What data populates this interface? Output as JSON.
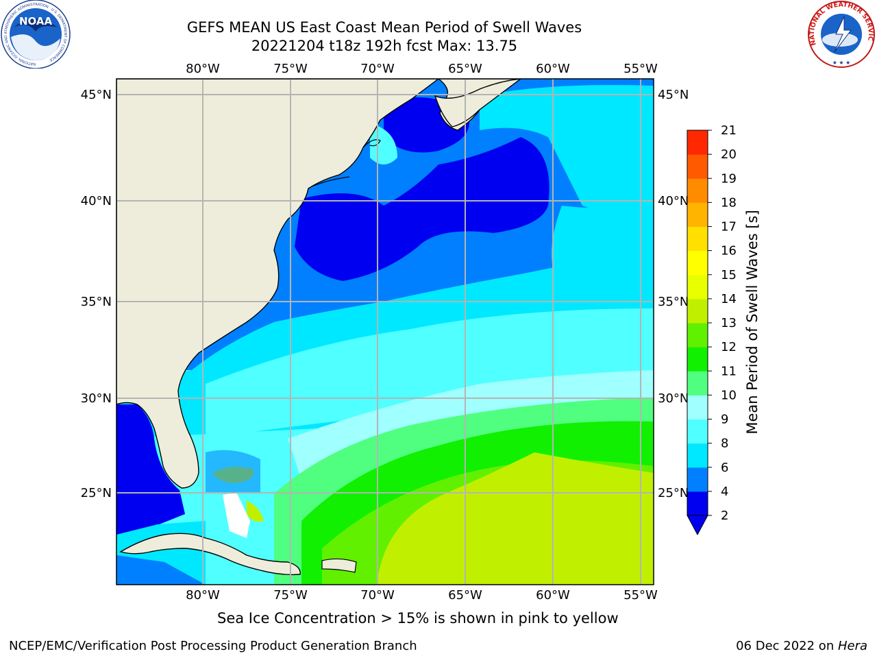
{
  "header": {
    "title_line1": "GEFS MEAN US East Coast Mean Period of Swell Waves",
    "title_line2": "20221204 t18z 192h fcst   Max: 13.75"
  },
  "logos": {
    "left": {
      "name": "noaa-logo",
      "text": "NOAA",
      "ring_text": "NATIONAL OCEANIC AND ATMOSPHERIC ADMINISTRATION · U.S. DEPARTMENT OF COMMERCE"
    },
    "right": {
      "name": "nws-logo",
      "ring_text": "NATIONAL WEATHER SERVICE"
    }
  },
  "map": {
    "lon_labels": [
      "80°W",
      "75°W",
      "70°W",
      "65°W",
      "60°W",
      "55°W"
    ],
    "lat_labels": [
      "45°N",
      "40°N",
      "35°N",
      "30°N",
      "25°N"
    ],
    "colors": {
      "land": "#eeeddb",
      "grid": "#b4b4b4",
      "frame": "#000000"
    }
  },
  "colorbar": {
    "label": "Mean Period of Swell Waves [s]",
    "ticks": [
      "2",
      "4",
      "6",
      "8",
      "9",
      "10",
      "11",
      "12",
      "13",
      "14",
      "15",
      "16",
      "17",
      "18",
      "19",
      "20",
      "21"
    ],
    "colors": [
      "#0000f0",
      "#0080ff",
      "#00e8ff",
      "#50ffff",
      "#a0ffff",
      "#50ff80",
      "#10f000",
      "#60f000",
      "#c0f000",
      "#e8ff00",
      "#ffff00",
      "#ffe000",
      "#ffb400",
      "#ff8c00",
      "#ff5a00",
      "#ff2800",
      "#ff0000"
    ],
    "under_color": "#0000f0"
  },
  "caption": "Sea Ice Concentration > 15% is shown in pink to yellow",
  "footer": {
    "left": "NCEP/EMC/Verification Post Processing Product Generation Branch",
    "right_prefix": "06 Dec 2022 on ",
    "right_machine": "Hera"
  }
}
